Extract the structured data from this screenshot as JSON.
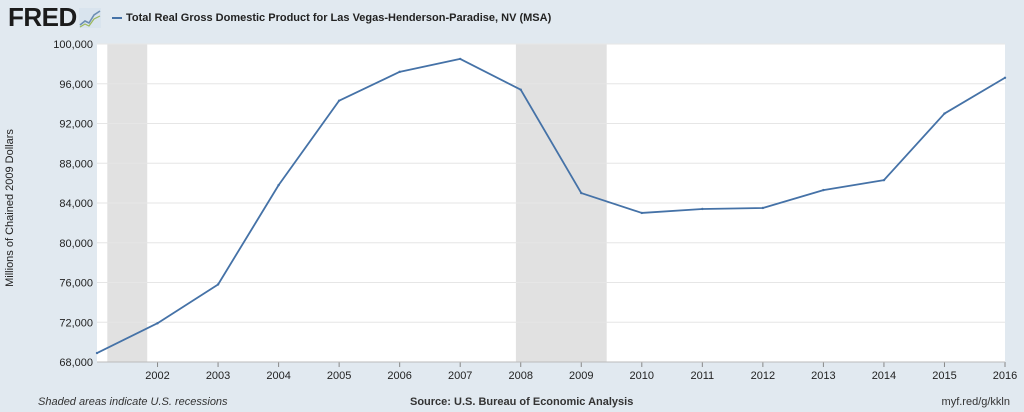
{
  "header": {
    "logo_text": "FRED",
    "logo_icon": "trend-line-icon"
  },
  "footer": {
    "recession_note": "Shaded areas indicate U.S. recessions",
    "source": "Source: U.S. Bureau of Economic Analysis",
    "short_url": "myf.red/g/kkln"
  },
  "colors": {
    "background": "#e1e9f0",
    "plot_background": "#ffffff",
    "series_line": "#4572a7",
    "recession_shading": "#e1e1e1",
    "gridline": "#e6e6e6"
  },
  "chart_data": {
    "type": "line",
    "title": "",
    "xlabel": "",
    "ylabel": "Millions of Chained 2009 Dollars",
    "legend_position": "top-left",
    "grid": true,
    "x_ticks": [
      "2002",
      "2003",
      "2004",
      "2005",
      "2006",
      "2007",
      "2008",
      "2009",
      "2010",
      "2011",
      "2012",
      "2013",
      "2014",
      "2015",
      "2016"
    ],
    "y_ticks": [
      "68,000",
      "72,000",
      "76,000",
      "80,000",
      "84,000",
      "88,000",
      "92,000",
      "96,000",
      "100,000"
    ],
    "xlim": [
      2001,
      2016
    ],
    "ylim": [
      68000,
      100000
    ],
    "recessions": [
      {
        "start": 2001.17,
        "end": 2001.83
      },
      {
        "start": 2007.92,
        "end": 2009.42
      }
    ],
    "series": [
      {
        "name": "Total Real Gross Domestic Product for Las Vegas-Henderson-Paradise, NV (MSA)",
        "x": [
          2001,
          2002,
          2003,
          2004,
          2005,
          2006,
          2007,
          2008,
          2009,
          2010,
          2011,
          2012,
          2013,
          2014,
          2015,
          2016
        ],
        "values": [
          68900,
          71900,
          75800,
          85800,
          94300,
          97200,
          98500,
          95400,
          85000,
          83000,
          83400,
          83500,
          85300,
          86300,
          93000,
          96600
        ]
      }
    ]
  }
}
